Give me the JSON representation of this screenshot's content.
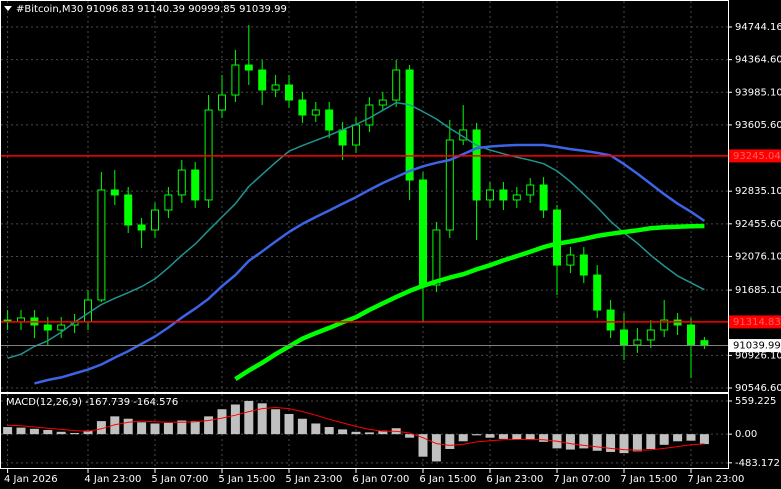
{
  "chart_data": [
    {
      "type": "candlestick",
      "title": "#Bitcoin,M30",
      "categories": [
        "4 Jan 2026",
        null,
        null,
        null,
        null,
        null,
        "4 Jan 23:00",
        null,
        null,
        null,
        null,
        "5 Jan 07:00",
        null,
        null,
        null,
        null,
        "5 Jan 15:00",
        null,
        null,
        null,
        null,
        "5 Jan 23:00",
        null,
        null,
        null,
        null,
        "6 Jan 07:00",
        null,
        null,
        null,
        null,
        "6 Jan 15:00",
        null,
        null,
        null,
        null,
        "6 Jan 23:00",
        null,
        null,
        null,
        null,
        "7 Jan 07:00",
        null,
        null,
        null,
        null,
        "7 Jan 15:00",
        null,
        null,
        null,
        null,
        "7 Jan 23:00",
        null
      ],
      "open": [
        91337,
        91314,
        91361,
        91279,
        91221,
        91279,
        91314,
        91570,
        92849,
        92791,
        92442,
        92384,
        92616,
        92791,
        93081,
        92733,
        93779,
        93953,
        94302,
        94244,
        94012,
        94070,
        93895,
        93721,
        93779,
        93547,
        93372,
        93605,
        93837,
        93895,
        94244,
        92965,
        91744,
        92384,
        93430,
        93547,
        92733,
        92849,
        92733,
        92791,
        92907,
        92616,
        91976,
        92093,
        91860,
        91453,
        91221,
        91047,
        91105,
        91221,
        91337,
        91279,
        91096.83
      ],
      "high": [
        91453,
        91453,
        91453,
        91372,
        91372,
        91407,
        91686,
        93058,
        93081,
        92884,
        92523,
        92698,
        92884,
        93198,
        93174,
        93953,
        94186,
        94477,
        94767,
        94360,
        94186,
        94186,
        93988,
        93872,
        93872,
        93639,
        93698,
        93930,
        93988,
        94360,
        94302,
        93058,
        92477,
        93663,
        93837,
        93628,
        92942,
        92942,
        92884,
        92988,
        92999,
        92674,
        92186,
        92186,
        91976,
        91570,
        91418,
        91244,
        91337,
        91570,
        91418,
        91361,
        91140.39
      ],
      "low": [
        91221,
        91221,
        91128,
        91047,
        91128,
        91186,
        91221,
        91546,
        92674,
        92349,
        92174,
        92291,
        92523,
        92698,
        92640,
        92640,
        93686,
        93872,
        94070,
        93837,
        93930,
        93802,
        93628,
        93639,
        93453,
        93198,
        93279,
        93523,
        93779,
        93814,
        92733,
        91314,
        91663,
        92291,
        93372,
        92267,
        92640,
        92616,
        92640,
        92698,
        92523,
        91628,
        91883,
        91767,
        91361,
        91128,
        90872,
        90954,
        91012,
        91139,
        91163,
        90663,
        90999.85
      ],
      "close": [
        91314,
        91361,
        91279,
        91221,
        91279,
        91314,
        91570,
        92849,
        92791,
        92442,
        92384,
        92616,
        92791,
        93081,
        92733,
        93779,
        93953,
        94302,
        94244,
        94012,
        94070,
        93895,
        93721,
        93779,
        93547,
        93372,
        93605,
        93837,
        93895,
        94244,
        92965,
        91744,
        92384,
        93430,
        93547,
        92733,
        92849,
        92733,
        92791,
        92907,
        92616,
        91976,
        92093,
        91860,
        91453,
        91221,
        91047,
        91105,
        91221,
        91337,
        91279,
        91047,
        91039.99
      ],
      "color": "#00ff00",
      "up_fill": "#000000",
      "down_fill": "#00ff00",
      "lines": [
        {
          "color": "#1f9590",
          "width": 1.5,
          "values": [
            90892,
            90940,
            91030,
            91095,
            91195,
            91310,
            91415,
            91517,
            91590,
            91655,
            91725,
            91815,
            91945,
            92090,
            92220,
            92380,
            92535,
            92690,
            92890,
            93030,
            93170,
            93300,
            93365,
            93425,
            93485,
            93550,
            93610,
            93686,
            93775,
            93865,
            93840,
            93760,
            93675,
            93565,
            93470,
            93370,
            93314,
            93270,
            93230,
            93195,
            93155,
            93070,
            92945,
            92800,
            92650,
            92485,
            92350,
            92230,
            92090,
            91965,
            91850,
            91770,
            91690
          ]
        },
        {
          "color": "#3d63e6",
          "width": 2.5,
          "values": [
            null,
            null,
            90600,
            90640,
            90670,
            90715,
            90760,
            90820,
            90900,
            90975,
            91060,
            91145,
            91250,
            91365,
            91470,
            91585,
            91730,
            91860,
            92025,
            92135,
            92250,
            92360,
            92455,
            92535,
            92610,
            92690,
            92765,
            92850,
            92930,
            93000,
            93070,
            93125,
            93165,
            93198,
            93265,
            93335,
            93355,
            93365,
            93372,
            93372,
            93372,
            93350,
            93325,
            93305,
            93280,
            93250,
            93150,
            93040,
            92920,
            92800,
            92690,
            92595,
            92490
          ]
        },
        {
          "color": "#00ff00",
          "width": 4.5,
          "values": [
            null,
            null,
            null,
            null,
            null,
            null,
            null,
            null,
            null,
            null,
            null,
            null,
            null,
            null,
            null,
            null,
            null,
            90650,
            90750,
            90840,
            90940,
            91030,
            91120,
            91185,
            91245,
            91310,
            91370,
            91455,
            91530,
            91605,
            91675,
            91735,
            91785,
            91830,
            91870,
            91925,
            91975,
            92030,
            92080,
            92130,
            92185,
            92225,
            92250,
            92280,
            92315,
            92340,
            92360,
            92380,
            92405,
            92415,
            92422,
            92428,
            92430
          ]
        }
      ],
      "levels": [
        {
          "value": 93245.04,
          "color": "#ff0000"
        },
        {
          "value": 91314.83,
          "color": "#ff0000"
        }
      ],
      "ylim": [
        90500,
        95000
      ],
      "yticks": [
        94744.16,
        {
          "value": 94364.6,
          "label": "94364.60"
        },
        {
          "value": 93985.1,
          "label": "93985.10"
        },
        {
          "value": 93605.6,
          "label": "93605.60"
        },
        {
          "value": 92835.1,
          "label": "92835.10"
        },
        {
          "value": 92455.6,
          "label": "92455.60"
        },
        {
          "value": 92076.1,
          "label": "92076.10"
        },
        {
          "value": 91685.1,
          "label": "91685.10"
        },
        {
          "value": 90926.1,
          "label": "90926.10"
        },
        {
          "value": 90546.6,
          "label": "90546.60"
        }
      ],
      "grid": true
    },
    {
      "type": "bar",
      "title": "MACD(12,26,9)",
      "values": [
        120,
        110,
        90,
        70,
        40,
        20,
        60,
        220,
        300,
        260,
        200,
        180,
        190,
        230,
        220,
        300,
        420,
        500,
        560,
        520,
        420,
        340,
        260,
        180,
        120,
        80,
        40,
        30,
        60,
        100,
        -60,
        -380,
        -460,
        -250,
        -120,
        -20,
        -60,
        -80,
        -90,
        -100,
        -130,
        -240,
        -260,
        -240,
        -280,
        -300,
        -320,
        -290,
        -250,
        -180,
        -120,
        -110,
        -167.739
      ],
      "color": "#c0c0c0",
      "signal": {
        "color": "#ff0000",
        "values": [
          150,
          140,
          120,
          100,
          80,
          60,
          50,
          90,
          160,
          200,
          220,
          210,
          200,
          200,
          210,
          230,
          270,
          320,
          380,
          430,
          450,
          430,
          380,
          320,
          250,
          190,
          130,
          80,
          50,
          50,
          20,
          -60,
          -160,
          -190,
          -170,
          -130,
          -110,
          -95,
          -90,
          -90,
          -95,
          -120,
          -160,
          -190,
          -215,
          -240,
          -260,
          -270,
          -265,
          -240,
          -210,
          -180,
          -164.576
        ]
      },
      "ylim": [
        -520,
        660
      ],
      "yticks": [
        559.225,
        {
          "value": 0,
          "label": "0.00"
        },
        -483.172
      ],
      "grid": true
    }
  ]
}
